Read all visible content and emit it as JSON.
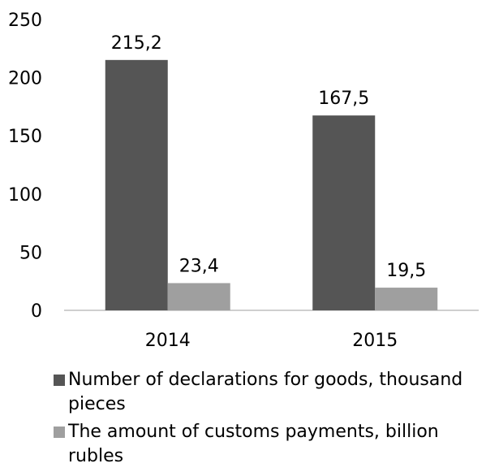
{
  "chart_data": {
    "type": "bar",
    "title": "",
    "xlabel": "",
    "ylabel": "",
    "categories": [
      "2014",
      "2015"
    ],
    "series": [
      {
        "name": "Number of declarations for goods, thousand pieces",
        "color": "#555555",
        "values": [
          215.2,
          167.5
        ],
        "labels": [
          "215,2",
          "167,5"
        ]
      },
      {
        "name": "The amount of customs payments, billion rubles",
        "color": "#9f9f9f",
        "values": [
          23.4,
          19.5
        ],
        "labels": [
          "23,4",
          "19,5"
        ]
      }
    ],
    "ylim": [
      0,
      250
    ],
    "yticks": [
      "0",
      "50",
      "100",
      "150",
      "200",
      "250"
    ],
    "grid": false,
    "legend_position": "bottom"
  }
}
